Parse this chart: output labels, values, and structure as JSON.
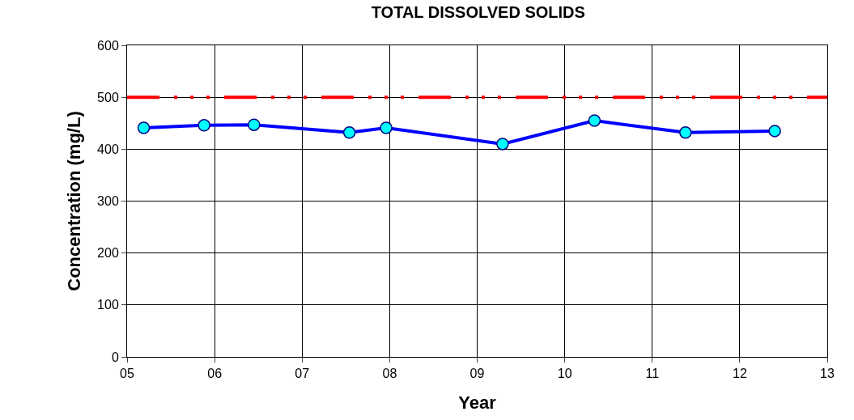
{
  "chart_data": {
    "type": "line",
    "title": "TOTAL DISSOLVED SOLIDS",
    "xlabel": "Year",
    "ylabel": "Concentration (mg/L)",
    "x": [
      5.19,
      5.88,
      6.45,
      7.54,
      7.96,
      9.29,
      10.34,
      11.38,
      12.4
    ],
    "series": [
      {
        "color": "#0000ff",
        "values": [
          441,
          446,
          447,
          432,
          441,
          410,
          455,
          432,
          435
        ]
      }
    ],
    "xlim": [
      5,
      13
    ],
    "xticks": [
      {
        "value": 5,
        "label": "05"
      },
      {
        "value": 6,
        "label": "06"
      },
      {
        "value": 7,
        "label": "07"
      },
      {
        "value": 8,
        "label": "08"
      },
      {
        "value": 9,
        "label": "09"
      },
      {
        "value": 10,
        "label": "10"
      },
      {
        "value": 11,
        "label": "11"
      },
      {
        "value": 12,
        "label": "12"
      },
      {
        "value": 13,
        "label": "13"
      }
    ],
    "ylim": [
      0,
      600
    ],
    "yticks": [
      0,
      100,
      200,
      300,
      400,
      500,
      600
    ],
    "ref_lines": [
      {
        "axis": "y",
        "value": 500,
        "color": "#ff0000",
        "line_style": "dashed"
      }
    ],
    "grid": true,
    "marker": "circle",
    "line_style": "solid"
  }
}
